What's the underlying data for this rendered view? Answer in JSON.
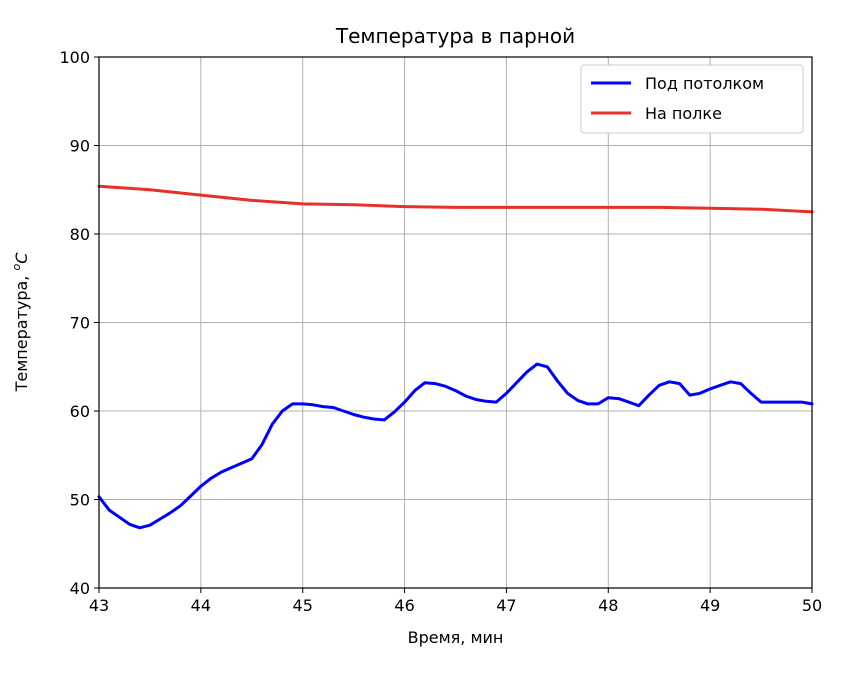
{
  "chart_data": {
    "type": "line",
    "title": "Температура в парной",
    "xlabel": "Время, мин",
    "ylabel_prefix": "Температура, ",
    "ylabel_sup": "o",
    "ylabel_unit": "C",
    "xlim": [
      43,
      50
    ],
    "ylim": [
      40,
      100
    ],
    "x_ticks": [
      "43",
      "44",
      "45",
      "46",
      "47",
      "48",
      "49",
      "50"
    ],
    "y_ticks": [
      "40",
      "50",
      "60",
      "70",
      "80",
      "90",
      "100"
    ],
    "grid": true,
    "legend_position": "upper-right",
    "series": [
      {
        "name": "Под потолком",
        "color": "#0000ff",
        "x": [
          43.0,
          43.1,
          43.2,
          43.3,
          43.4,
          43.5,
          43.6,
          43.7,
          43.8,
          43.9,
          44.0,
          44.1,
          44.2,
          44.3,
          44.4,
          44.5,
          44.6,
          44.7,
          44.8,
          44.9,
          45.0,
          45.1,
          45.2,
          45.3,
          45.4,
          45.5,
          45.6,
          45.7,
          45.8,
          45.9,
          46.0,
          46.1,
          46.2,
          46.3,
          46.4,
          46.5,
          46.6,
          46.7,
          46.8,
          46.9,
          47.0,
          47.1,
          47.2,
          47.3,
          47.4,
          47.5,
          47.6,
          47.7,
          47.8,
          47.9,
          48.0,
          48.1,
          48.2,
          48.3,
          48.4,
          48.5,
          48.6,
          48.7,
          48.8,
          48.9,
          49.0,
          49.1,
          49.2,
          49.3,
          49.4,
          49.5,
          49.6,
          49.7,
          49.8,
          49.9,
          50.0
        ],
        "y": [
          50.3,
          48.8,
          48.0,
          47.2,
          46.8,
          47.1,
          47.8,
          48.5,
          49.3,
          50.4,
          51.5,
          52.4,
          53.1,
          53.6,
          54.1,
          54.6,
          56.2,
          58.5,
          60.0,
          60.8,
          60.8,
          60.7,
          60.5,
          60.4,
          60.0,
          59.6,
          59.3,
          59.1,
          59.0,
          59.9,
          61.0,
          62.3,
          63.2,
          63.1,
          62.8,
          62.3,
          61.7,
          61.3,
          61.1,
          61.0,
          62.0,
          63.2,
          64.4,
          65.3,
          65.0,
          63.4,
          62.0,
          61.2,
          60.8,
          60.8,
          61.5,
          61.4,
          61.0,
          60.6,
          61.8,
          62.9,
          63.3,
          63.1,
          61.8,
          62.0,
          62.5,
          62.9,
          63.3,
          63.1,
          62.0,
          61.0,
          61.0,
          61.0,
          61.0,
          61.0,
          60.8
        ]
      },
      {
        "name": "На полке",
        "color": "#e8302a",
        "x": [
          43.0,
          43.5,
          44.0,
          44.5,
          45.0,
          45.5,
          46.0,
          46.5,
          47.0,
          47.5,
          48.0,
          48.5,
          49.0,
          49.5,
          50.0
        ],
        "y": [
          85.4,
          85.0,
          84.4,
          83.8,
          83.4,
          83.3,
          83.1,
          83.0,
          83.0,
          83.0,
          83.0,
          83.0,
          82.9,
          82.8,
          82.5
        ]
      }
    ]
  }
}
